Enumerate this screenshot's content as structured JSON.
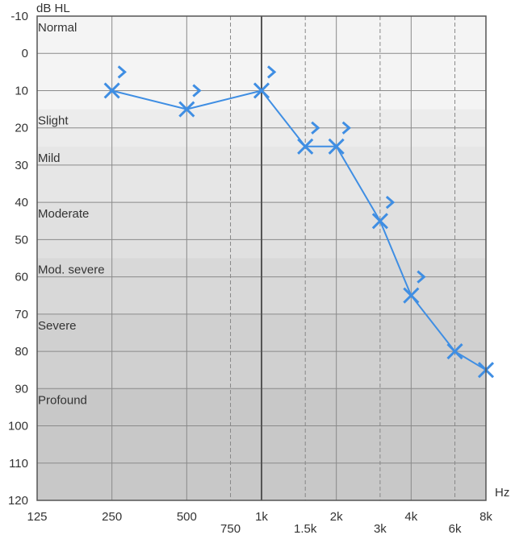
{
  "chart_data": {
    "type": "line",
    "ylabel": "dB HL",
    "xlabel": "Hz",
    "x_scale": "log",
    "y_inverted": true,
    "xlim": [
      125,
      8000
    ],
    "ylim": [
      -10,
      120
    ],
    "y_ticks": [
      -10,
      0,
      10,
      20,
      30,
      40,
      50,
      60,
      70,
      80,
      90,
      100,
      110,
      120
    ],
    "x_ticks_main": [
      {
        "value": 125,
        "label": "125"
      },
      {
        "value": 250,
        "label": "250"
      },
      {
        "value": 500,
        "label": "500"
      },
      {
        "value": 1000,
        "label": "1k"
      },
      {
        "value": 2000,
        "label": "2k"
      },
      {
        "value": 4000,
        "label": "4k"
      },
      {
        "value": 8000,
        "label": "8k"
      }
    ],
    "x_ticks_inter": [
      {
        "value": 750,
        "label": "750"
      },
      {
        "value": 1500,
        "label": "1.5k"
      },
      {
        "value": 3000,
        "label": "3k"
      },
      {
        "value": 6000,
        "label": "6k"
      }
    ],
    "bands": [
      {
        "label": "Normal",
        "from": -10,
        "to": 15,
        "color": "#f4f4f4"
      },
      {
        "label": "Slight",
        "from": 15,
        "to": 25,
        "color": "#ececec"
      },
      {
        "label": "Mild",
        "from": 25,
        "to": 40,
        "color": "#e6e6e6"
      },
      {
        "label": "Moderate",
        "from": 40,
        "to": 55,
        "color": "#e0e0e0"
      },
      {
        "label": "Mod. severe",
        "from": 55,
        "to": 70,
        "color": "#d8d8d8"
      },
      {
        "label": "Severe",
        "from": 70,
        "to": 90,
        "color": "#d0d0d0"
      },
      {
        "label": "Profound",
        "from": 90,
        "to": 120,
        "color": "#c8c8c8"
      }
    ],
    "series": [
      {
        "marker": "x",
        "color": "#3f8ee3",
        "points": [
          {
            "x": 250,
            "y": 10
          },
          {
            "x": 500,
            "y": 15
          },
          {
            "x": 1000,
            "y": 10
          },
          {
            "x": 1500,
            "y": 25
          },
          {
            "x": 2000,
            "y": 25
          },
          {
            "x": 3000,
            "y": 45
          },
          {
            "x": 4000,
            "y": 65
          },
          {
            "x": 6000,
            "y": 80
          },
          {
            "x": 8000,
            "y": 85
          }
        ]
      },
      {
        "marker": ">",
        "color": "#3f8ee3",
        "points": [
          {
            "x": 250,
            "y": 5
          },
          {
            "x": 500,
            "y": 10
          },
          {
            "x": 1000,
            "y": 5
          },
          {
            "x": 1500,
            "y": 20
          },
          {
            "x": 2000,
            "y": 20
          },
          {
            "x": 3000,
            "y": 40
          },
          {
            "x": 4000,
            "y": 60
          }
        ]
      }
    ],
    "grid": true
  }
}
